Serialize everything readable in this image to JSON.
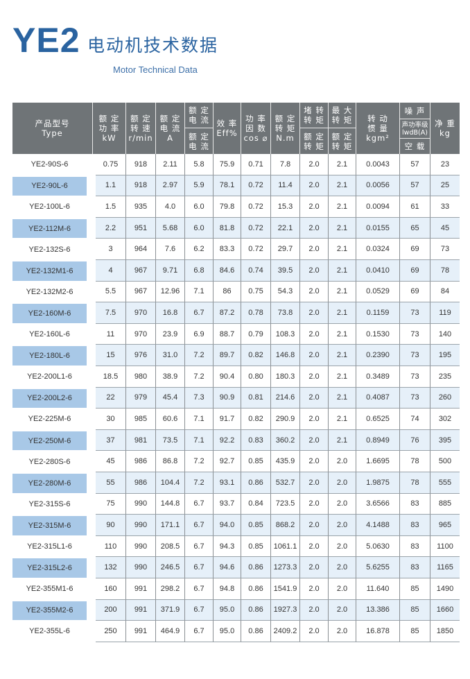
{
  "title": {
    "logo": "YE2",
    "chinese": "电动机技术数据",
    "english": "Motor Technical Data"
  },
  "colors": {
    "brand": "#2a63a0",
    "header": "#6f7477",
    "highlight": "#a8c8e7",
    "row_alt": "#e6f0f9"
  },
  "headers": {
    "type": "产品型号\nType",
    "kw": "额 定\n功 率\nkW",
    "rpm": "额 定\n转 速\nr/min",
    "amp": "额 定\n电 流\nA",
    "ist_top": "额 定\n电 流",
    "ist_bottom": "额 定\n电 流",
    "eff": "效 率\nEff%",
    "pf": "功 率\n因 数\ncos ⌀",
    "torque": "额 定\n转 矩\nN.m",
    "tst_top": "堵 转\n转 矩",
    "tst_bottom": "额 定\n转 矩",
    "tmax_top": "最 大\n转 矩",
    "tmax_bottom": "额 定\n转 矩",
    "inertia": "转 动\n惯 量\nkgm²",
    "noise_top": "噪 声",
    "noise_mid": "声功率级\nlwdB(A)",
    "noise_bottom": "空 载",
    "weight": "净 重\nkg"
  },
  "rows": [
    [
      "YE2-90S-6",
      "0.75",
      "918",
      "2.11",
      "5.8",
      "75.9",
      "0.71",
      "7.8",
      "2.0",
      "2.1",
      "0.0043",
      "57",
      "23"
    ],
    [
      "YE2-90L-6",
      "1.1",
      "918",
      "2.97",
      "5.9",
      "78.1",
      "0.72",
      "11.4",
      "2.0",
      "2.1",
      "0.0056",
      "57",
      "25"
    ],
    [
      "YE2-100L-6",
      "1.5",
      "935",
      "4.0",
      "6.0",
      "79.8",
      "0.72",
      "15.3",
      "2.0",
      "2.1",
      "0.0094",
      "61",
      "33"
    ],
    [
      "YE2-112M-6",
      "2.2",
      "951",
      "5.68",
      "6.0",
      "81.8",
      "0.72",
      "22.1",
      "2.0",
      "2.1",
      "0.0155",
      "65",
      "45"
    ],
    [
      "YE2-132S-6",
      "3",
      "964",
      "7.6",
      "6.2",
      "83.3",
      "0.72",
      "29.7",
      "2.0",
      "2.1",
      "0.0324",
      "69",
      "73"
    ],
    [
      "YE2-132M1-6",
      "4",
      "967",
      "9.71",
      "6.8",
      "84.6",
      "0.74",
      "39.5",
      "2.0",
      "2.1",
      "0.0410",
      "69",
      "78"
    ],
    [
      "YE2-132M2-6",
      "5.5",
      "967",
      "12.96",
      "7.1",
      "86",
      "0.75",
      "54.3",
      "2.0",
      "2.1",
      "0.0529",
      "69",
      "84"
    ],
    [
      "YE2-160M-6",
      "7.5",
      "970",
      "16.8",
      "6.7",
      "87.2",
      "0.78",
      "73.8",
      "2.0",
      "2.1",
      "0.1159",
      "73",
      "119"
    ],
    [
      "YE2-160L-6",
      "11",
      "970",
      "23.9",
      "6.9",
      "88.7",
      "0.79",
      "108.3",
      "2.0",
      "2.1",
      "0.1530",
      "73",
      "140"
    ],
    [
      "YE2-180L-6",
      "15",
      "976",
      "31.0",
      "7.2",
      "89.7",
      "0.82",
      "146.8",
      "2.0",
      "2.1",
      "0.2390",
      "73",
      "195"
    ],
    [
      "YE2-200L1-6",
      "18.5",
      "980",
      "38.9",
      "7.2",
      "90.4",
      "0.80",
      "180.3",
      "2.0",
      "2.1",
      "0.3489",
      "73",
      "235"
    ],
    [
      "YE2-200L2-6",
      "22",
      "979",
      "45.4",
      "7.3",
      "90.9",
      "0.81",
      "214.6",
      "2.0",
      "2.1",
      "0.4087",
      "73",
      "260"
    ],
    [
      "YE2-225M-6",
      "30",
      "985",
      "60.6",
      "7.1",
      "91.7",
      "0.82",
      "290.9",
      "2.0",
      "2.1",
      "0.6525",
      "74",
      "302"
    ],
    [
      "YE2-250M-6",
      "37",
      "981",
      "73.5",
      "7.1",
      "92.2",
      "0.83",
      "360.2",
      "2.0",
      "2.1",
      "0.8949",
      "76",
      "395"
    ],
    [
      "YE2-280S-6",
      "45",
      "986",
      "86.8",
      "7.2",
      "92.7",
      "0.85",
      "435.9",
      "2.0",
      "2.0",
      "1.6695",
      "78",
      "500"
    ],
    [
      "YE2-280M-6",
      "55",
      "986",
      "104.4",
      "7.2",
      "93.1",
      "0.86",
      "532.7",
      "2.0",
      "2.0",
      "1.9875",
      "78",
      "555"
    ],
    [
      "YE2-315S-6",
      "75",
      "990",
      "144.8",
      "6.7",
      "93.7",
      "0.84",
      "723.5",
      "2.0",
      "2.0",
      "3.6566",
      "83",
      "885"
    ],
    [
      "YE2-315M-6",
      "90",
      "990",
      "171.1",
      "6.7",
      "94.0",
      "0.85",
      "868.2",
      "2.0",
      "2.0",
      "4.1488",
      "83",
      "965"
    ],
    [
      "YE2-315L1-6",
      "110",
      "990",
      "208.5",
      "6.7",
      "94.3",
      "0.85",
      "1061.1",
      "2.0",
      "2.0",
      "5.0630",
      "83",
      "1100"
    ],
    [
      "YE2-315L2-6",
      "132",
      "990",
      "246.5",
      "6.7",
      "94.6",
      "0.86",
      "1273.3",
      "2.0",
      "2.0",
      "5.6255",
      "83",
      "1165"
    ],
    [
      "YE2-355M1-6",
      "160",
      "991",
      "298.2",
      "6.7",
      "94.8",
      "0.86",
      "1541.9",
      "2.0",
      "2.0",
      "11.640",
      "85",
      "1490"
    ],
    [
      "YE2-355M2-6",
      "200",
      "991",
      "371.9",
      "6.7",
      "95.0",
      "0.86",
      "1927.3",
      "2.0",
      "2.0",
      "13.386",
      "85",
      "1660"
    ],
    [
      "YE2-355L-6",
      "250",
      "991",
      "464.9",
      "6.7",
      "95.0",
      "0.86",
      "2409.2",
      "2.0",
      "2.0",
      "16.878",
      "85",
      "1850"
    ]
  ]
}
